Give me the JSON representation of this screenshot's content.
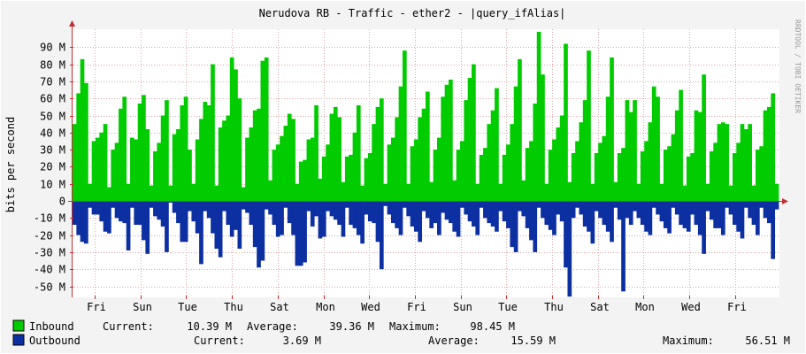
{
  "chart_data": {
    "type": "area",
    "title": "Nerudova RB - Traffic - ether2 - |query_ifAlias|",
    "ylabel": "bits per second",
    "watermark": "RRDTOOL / TOBI OETIKER",
    "ylim": [
      -57,
      98
    ],
    "y_ticks": [
      {
        "value": 90,
        "label": "90 M"
      },
      {
        "value": 80,
        "label": "80 M"
      },
      {
        "value": 70,
        "label": "70 M"
      },
      {
        "value": 60,
        "label": "60 M"
      },
      {
        "value": 50,
        "label": "50 M"
      },
      {
        "value": 40,
        "label": "40 M"
      },
      {
        "value": 30,
        "label": "30 M"
      },
      {
        "value": 20,
        "label": "20 M"
      },
      {
        "value": 10,
        "label": "10 M"
      },
      {
        "value": 0,
        "label": "0"
      },
      {
        "value": -10,
        "label": "-10 M"
      },
      {
        "value": -20,
        "label": "-20 M"
      },
      {
        "value": -30,
        "label": "-30 M"
      },
      {
        "value": -40,
        "label": "-40 M"
      },
      {
        "value": -50,
        "label": "-50 M"
      }
    ],
    "x_ticks": [
      "Fri",
      "Sun",
      "Tue",
      "Thu",
      "Sat",
      "Mon",
      "Wed",
      "Fri",
      "Sun",
      "Tue",
      "Thu",
      "Sat",
      "Mon",
      "Wed",
      "Fri"
    ],
    "series": [
      {
        "name": "Inbound",
        "color": "#00cc00",
        "stats": {
          "current": "10.39 M",
          "average": "39.36 M",
          "maximum": "98.45 M"
        },
        "values": [
          45,
          63,
          83,
          69,
          10,
          35,
          37,
          40,
          45,
          8,
          30,
          34,
          54,
          61,
          10,
          37,
          36,
          57,
          62,
          42,
          9,
          29,
          34,
          50,
          59,
          9,
          39,
          42,
          56,
          61,
          30,
          10,
          36,
          48,
          58,
          56,
          80,
          9,
          43,
          47,
          50,
          84,
          77,
          60,
          8,
          37,
          43,
          53,
          54,
          82,
          84,
          12,
          30,
          33,
          38,
          44,
          51,
          48,
          10,
          23,
          24,
          36,
          37,
          56,
          13,
          26,
          33,
          51,
          55,
          49,
          11,
          26,
          27,
          40,
          56,
          9,
          25,
          28,
          45,
          55,
          60,
          10,
          33,
          37,
          49,
          67,
          88,
          10,
          32,
          36,
          49,
          54,
          64,
          11,
          30,
          37,
          61,
          68,
          71,
          12,
          30,
          35,
          59,
          72,
          80,
          10,
          27,
          31,
          45,
          53,
          66,
          10,
          27,
          33,
          45,
          67,
          83,
          12,
          31,
          35,
          57,
          99,
          74,
          10,
          30,
          36,
          43,
          50,
          92,
          11,
          28,
          35,
          46,
          59,
          88,
          10,
          28,
          34,
          38,
          61,
          84,
          11,
          28,
          31,
          59,
          52,
          59,
          10,
          29,
          35,
          46,
          67,
          61,
          10,
          30,
          32,
          39,
          53,
          65,
          9,
          26,
          28,
          53,
          52,
          74,
          10,
          29,
          34,
          45,
          46,
          45,
          9,
          28,
          34,
          45,
          42,
          45,
          9,
          30,
          32,
          53,
          55,
          63,
          10
        ]
      },
      {
        "name": "Outbound",
        "color": "#0c2fa2",
        "stats": {
          "current": "3.69 M",
          "average": "15.59 M",
          "maximum": "56.51 M"
        },
        "values": [
          -14,
          -20,
          -24,
          -25,
          -4,
          -8,
          -8,
          -12,
          -18,
          -19,
          -4,
          -10,
          -12,
          -13,
          -29,
          -4,
          -14,
          -14,
          -23,
          -31,
          -4,
          -9,
          -11,
          -15,
          -30,
          -1,
          -7,
          -13,
          -24,
          -24,
          -6,
          -12,
          -19,
          -37,
          -6,
          -10,
          -19,
          -28,
          -33,
          -6,
          -14,
          -21,
          -17,
          -28,
          -5,
          -7,
          -14,
          -27,
          -39,
          -35,
          -5,
          -8,
          -14,
          -21,
          -20,
          -4,
          -13,
          -20,
          -38,
          -38,
          -36,
          -6,
          -15,
          -9,
          -22,
          -21,
          -6,
          -9,
          -11,
          -14,
          -21,
          -4,
          -14,
          -16,
          -20,
          -25,
          -8,
          -12,
          -13,
          -24,
          -40,
          -3,
          -8,
          -13,
          -16,
          -20,
          -4,
          -9,
          -15,
          -18,
          -24,
          -6,
          -10,
          -16,
          -13,
          -20,
          -7,
          -11,
          -13,
          -18,
          -21,
          -4,
          -8,
          -12,
          -15,
          -20,
          -4,
          -10,
          -13,
          -15,
          -18,
          -6,
          -12,
          -16,
          -27,
          -30,
          -6,
          -9,
          -16,
          -23,
          -30,
          -4,
          -10,
          -14,
          -17,
          -20,
          -8,
          -12,
          -39,
          -56,
          -10,
          -4,
          -8,
          -15,
          -18,
          -25,
          -6,
          -10,
          -14,
          -18,
          -24,
          -4,
          -11,
          -53,
          -10,
          -14,
          -6,
          -10,
          -14,
          -18,
          -20,
          -4,
          -8,
          -12,
          -16,
          -19,
          -4,
          -8,
          -14,
          -16,
          -18,
          -8,
          -14,
          -20,
          -31,
          -6,
          -11,
          -16,
          -16,
          -20,
          -4,
          -8,
          -14,
          -18,
          -22,
          -4,
          -10,
          -14,
          -20,
          -4,
          -10,
          -13,
          -34,
          -5
        ]
      }
    ],
    "legend": {
      "current_label": "Current:",
      "average_label": "Average:",
      "maximum_label": "Maximum:"
    }
  }
}
